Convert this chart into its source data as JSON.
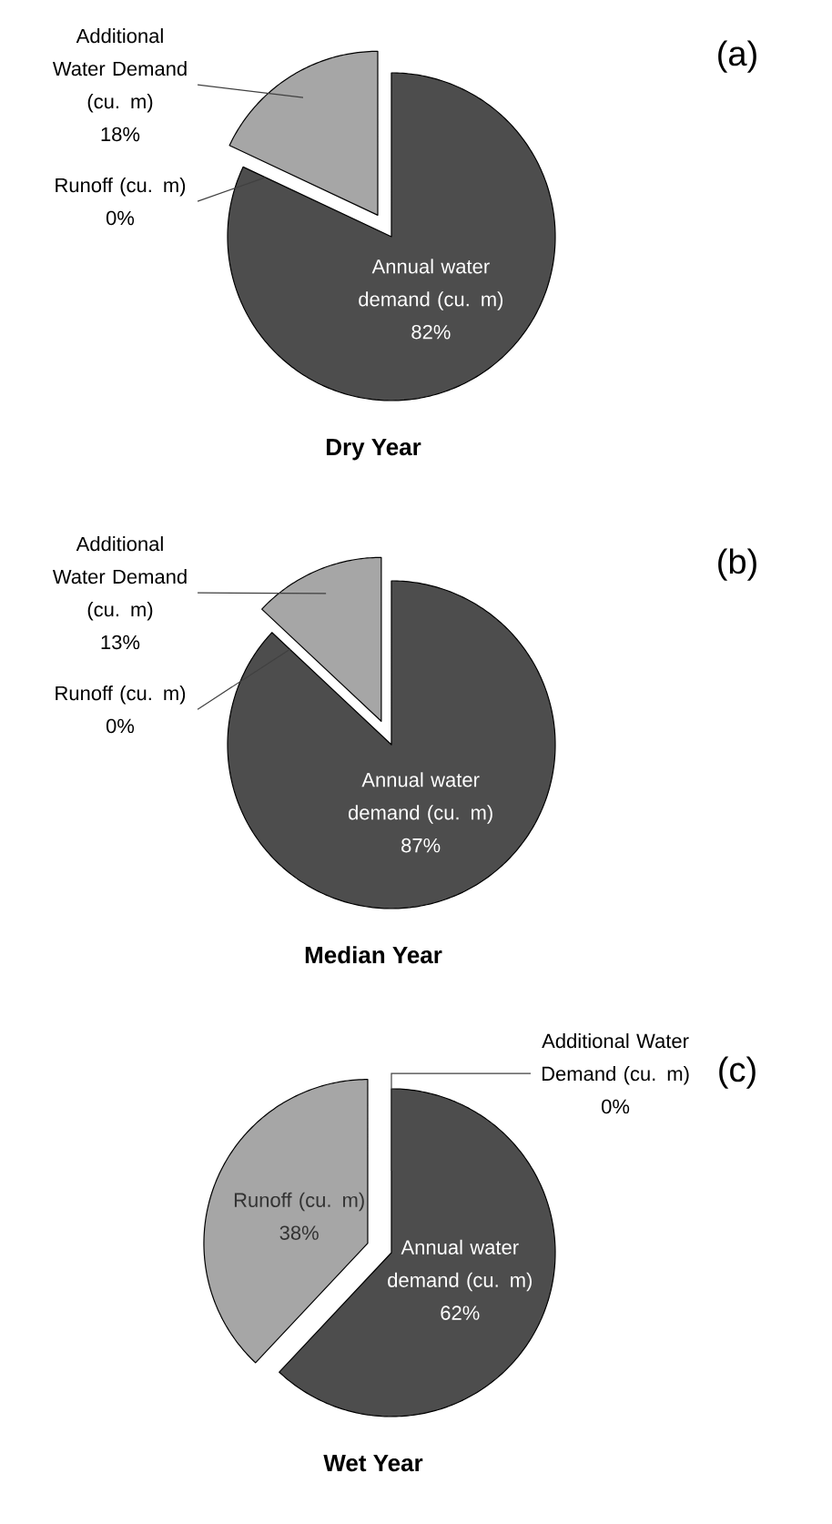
{
  "chart_data": [
    {
      "type": "pie",
      "title": "Dry Year",
      "categories": [
        "Annual water demand (cu. m)",
        "Runoff (cu. m)",
        "Additional Water Demand (cu. m)"
      ],
      "values": [
        82,
        0,
        18
      ],
      "colors": [
        "#4d4d4d",
        "#5e5e5e",
        "#a6a6a6"
      ],
      "value_labels": [
        "82%",
        "0%",
        "18%"
      ],
      "annotations": [
        "(a)"
      ]
    },
    {
      "type": "pie",
      "title": "Median Year",
      "categories": [
        "Annual water demand (cu. m)",
        "Runoff (cu. m)",
        "Additional Water Demand (cu. m)"
      ],
      "values": [
        87,
        0,
        13
      ],
      "colors": [
        "#4d4d4d",
        "#5e5e5e",
        "#a6a6a6"
      ],
      "value_labels": [
        "87%",
        "0%",
        "13%"
      ],
      "annotations": [
        "(b)"
      ]
    },
    {
      "type": "pie",
      "title": "Wet Year",
      "categories": [
        "Annual water demand (cu. m)",
        "Runoff (cu. m)",
        "Additional Water Demand (cu. m)"
      ],
      "values": [
        62,
        38,
        0
      ],
      "colors": [
        "#4d4d4d",
        "#a6a6a6",
        "#5e5e5e"
      ],
      "value_labels": [
        "62%",
        "38%",
        "0%"
      ],
      "annotations": [
        "(c)"
      ]
    }
  ]
}
